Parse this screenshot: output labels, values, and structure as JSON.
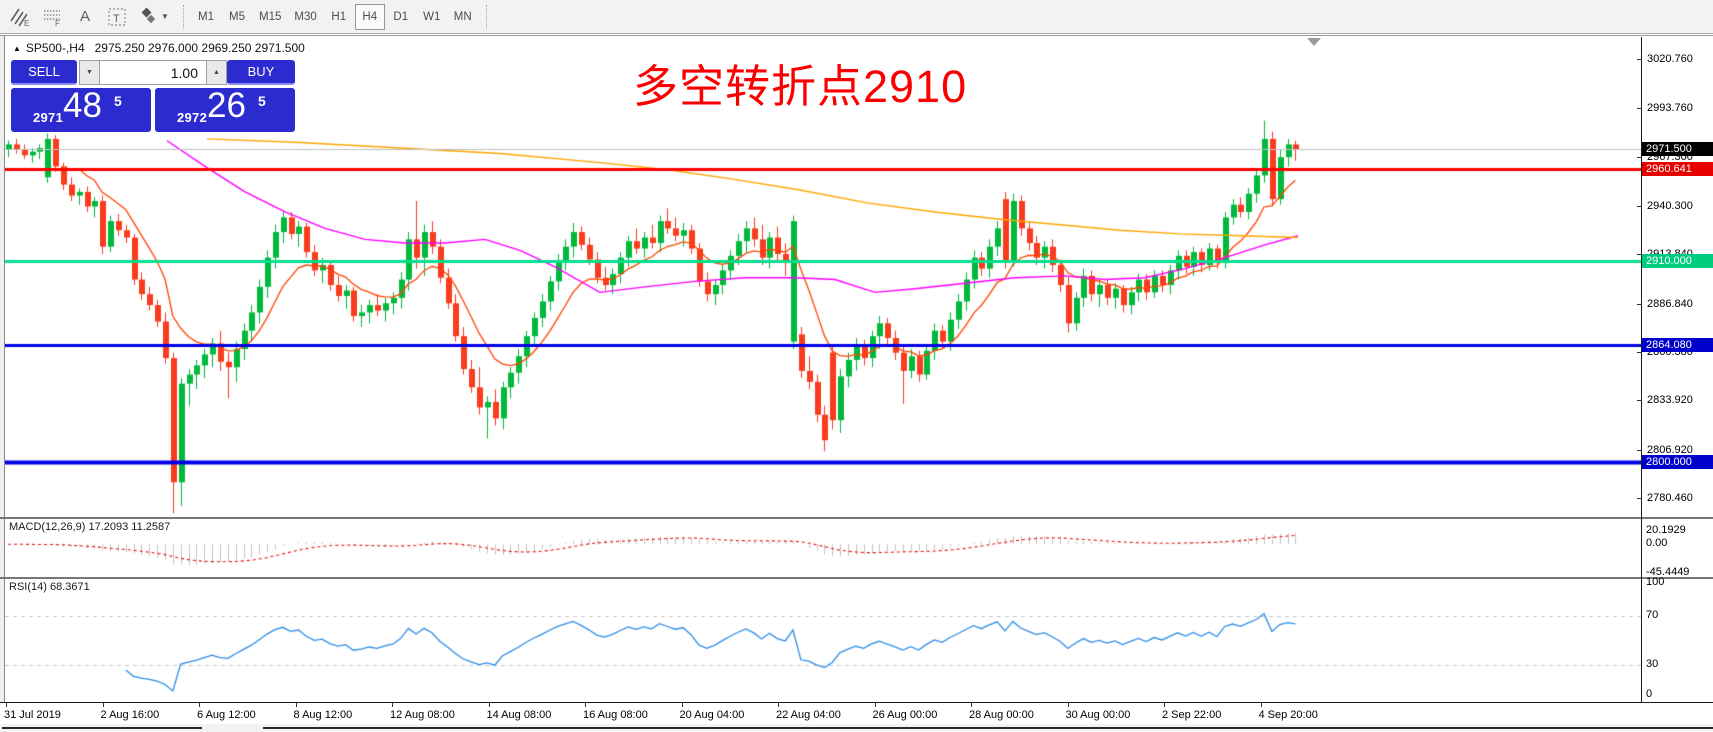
{
  "toolbar": {
    "icons": [
      {
        "name": "indicators-hatch-icon",
        "sub": "E"
      },
      {
        "name": "grid-pattern-icon",
        "sub": "F"
      },
      {
        "name": "text-label-icon",
        "glyph": "A"
      },
      {
        "name": "text-box-icon",
        "glyph": "T"
      },
      {
        "name": "arrange-objects-icon",
        "glyph": "❖"
      }
    ],
    "timeframes": [
      {
        "label": "M1",
        "active": false
      },
      {
        "label": "M5",
        "active": false
      },
      {
        "label": "M15",
        "active": false
      },
      {
        "label": "M30",
        "active": false
      },
      {
        "label": "H1",
        "active": false
      },
      {
        "label": "H4",
        "active": true
      },
      {
        "label": "D1",
        "active": false
      },
      {
        "label": "W1",
        "active": false
      },
      {
        "label": "MN",
        "active": false
      }
    ]
  },
  "header": {
    "collapse_arrow": "▲",
    "symbol": "SP500-,H4",
    "ohlc": "2975.250 2976.000 2969.250 2971.500"
  },
  "trade_panel": {
    "sell_label": "SELL",
    "buy_label": "BUY",
    "lot_value": "1.00",
    "spin_down": "▼",
    "spin_up": "▲",
    "sell_price_small": "2971",
    "sell_price_big": "48",
    "sell_price_sup": "5",
    "buy_price_small": "2972",
    "buy_price_big": "26",
    "buy_price_sup": "5"
  },
  "annotation": {
    "text": "多空转折点2910",
    "color": "#fb0000"
  },
  "chart_data": {
    "type": "candlestick",
    "symbol": "SP500-",
    "timeframe": "H4",
    "title_ohlc": "2975.250 2976.000 2969.250 2971.500",
    "current_price": 2971.5,
    "bull_color": "#00b93c",
    "bear_color": "#f93c1e",
    "axis": {
      "price_top": 3032.8,
      "price_bottom": 2770.0
    },
    "price_ticks": [
      {
        "label": "3020.760",
        "value": 3020.76
      },
      {
        "label": "2993.760",
        "value": 2993.76
      },
      {
        "label": "2967.300",
        "value": 2967.3
      },
      {
        "label": "2940.300",
        "value": 2940.3
      },
      {
        "label": "2913.840",
        "value": 2913.84
      },
      {
        "label": "2886.840",
        "value": 2886.84
      },
      {
        "label": "2860.380",
        "value": 2860.38
      },
      {
        "label": "2833.920",
        "value": 2833.92
      },
      {
        "label": "2806.920",
        "value": 2806.92
      },
      {
        "label": "2780.460",
        "value": 2780.46
      }
    ],
    "price_boxes": [
      {
        "label": "2971.500",
        "value": 2971.5,
        "bg": "#000000"
      },
      {
        "label": "2960.641",
        "value": 2960.641,
        "bg": "#e60000"
      },
      {
        "label": "2910.000",
        "value": 2910.0,
        "bg": "#00cc80"
      },
      {
        "label": "2864.080",
        "value": 2864.08,
        "bg": "#0000cc"
      },
      {
        "label": "2800.000",
        "value": 2800.0,
        "bg": "#0000cc"
      }
    ],
    "hlines": [
      {
        "value": 2960.641,
        "color": "#fe0000",
        "width": 3
      },
      {
        "value": 2910.0,
        "color": "#00de8e",
        "width": 3
      },
      {
        "value": 2864.08,
        "color": "#0000e6",
        "width": 3
      },
      {
        "value": 2800.0,
        "color": "#0000e6",
        "width": 4
      },
      {
        "value": 2971.5,
        "color": "#c0c0c0",
        "width": 1
      }
    ],
    "time_labels": [
      "31 Jul 2019",
      "2 Aug 16:00",
      "6 Aug 12:00",
      "8 Aug 12:00",
      "12 Aug 08:00",
      "14 Aug 08:00",
      "16 Aug 08:00",
      "20 Aug 04:00",
      "22 Aug 04:00",
      "26 Aug 00:00",
      "28 Aug 00:00",
      "30 Aug 00:00",
      "2 Sep 22:00",
      "4 Sep 20:00"
    ],
    "candles": [
      [
        2971,
        2976,
        2967,
        2974
      ],
      [
        2974,
        2977,
        2969,
        2971
      ],
      [
        2971,
        2974,
        2966,
        2968
      ],
      [
        2968,
        2972,
        2964,
        2970
      ],
      [
        2970,
        2974,
        2966,
        2972
      ],
      [
        2956,
        2980,
        2953,
        2977
      ],
      [
        2977,
        2979,
        2959,
        2962
      ],
      [
        2962,
        2964,
        2949,
        2952
      ],
      [
        2952,
        2956,
        2943,
        2946
      ],
      [
        2946,
        2950,
        2941,
        2948
      ],
      [
        2948,
        2951,
        2937,
        2940
      ],
      [
        2940,
        2945,
        2934,
        2943
      ],
      [
        2943,
        2946,
        2914,
        2918
      ],
      [
        2918,
        2935,
        2915,
        2932
      ],
      [
        2932,
        2936,
        2924,
        2927
      ],
      [
        2927,
        2930,
        2920,
        2923
      ],
      [
        2923,
        2925,
        2897,
        2900
      ],
      [
        2900,
        2904,
        2889,
        2892
      ],
      [
        2892,
        2896,
        2883,
        2886
      ],
      [
        2886,
        2889,
        2874,
        2877
      ],
      [
        2877,
        2882,
        2854,
        2857
      ],
      [
        2857,
        2860,
        2772,
        2789
      ],
      [
        2789,
        2846,
        2776,
        2843
      ],
      [
        2843,
        2851,
        2831,
        2848
      ],
      [
        2848,
        2856,
        2840,
        2853
      ],
      [
        2853,
        2862,
        2846,
        2859
      ],
      [
        2859,
        2868,
        2852,
        2865
      ],
      [
        2865,
        2872,
        2850,
        2855
      ],
      [
        2855,
        2860,
        2835,
        2852
      ],
      [
        2852,
        2866,
        2844,
        2862
      ],
      [
        2862,
        2876,
        2856,
        2872
      ],
      [
        2872,
        2886,
        2866,
        2882
      ],
      [
        2882,
        2900,
        2876,
        2896
      ],
      [
        2896,
        2916,
        2890,
        2912
      ],
      [
        2912,
        2930,
        2906,
        2926
      ],
      [
        2926,
        2938,
        2920,
        2934
      ],
      [
        2934,
        2937,
        2922,
        2925
      ],
      [
        2925,
        2932,
        2918,
        2929
      ],
      [
        2929,
        2931,
        2912,
        2915
      ],
      [
        2915,
        2919,
        2902,
        2905
      ],
      [
        2905,
        2912,
        2898,
        2908
      ],
      [
        2908,
        2910,
        2894,
        2897
      ],
      [
        2897,
        2902,
        2888,
        2891
      ],
      [
        2891,
        2897,
        2884,
        2894
      ],
      [
        2894,
        2896,
        2877,
        2880
      ],
      [
        2880,
        2886,
        2874,
        2882
      ],
      [
        2882,
        2889,
        2876,
        2886
      ],
      [
        2886,
        2892,
        2880,
        2883
      ],
      [
        2883,
        2890,
        2877,
        2887
      ],
      [
        2887,
        2893,
        2881,
        2890
      ],
      [
        2890,
        2904,
        2884,
        2900
      ],
      [
        2900,
        2926,
        2894,
        2922
      ],
      [
        2922,
        2943,
        2906,
        2912
      ],
      [
        2912,
        2930,
        2902,
        2926
      ],
      [
        2926,
        2932,
        2914,
        2918
      ],
      [
        2918,
        2922,
        2898,
        2901
      ],
      [
        2901,
        2906,
        2884,
        2887
      ],
      [
        2887,
        2892,
        2866,
        2869
      ],
      [
        2869,
        2874,
        2848,
        2851
      ],
      [
        2851,
        2856,
        2838,
        2841
      ],
      [
        2841,
        2852,
        2826,
        2830
      ],
      [
        2830,
        2836,
        2813,
        2833
      ],
      [
        2833,
        2840,
        2820,
        2824
      ],
      [
        2824,
        2844,
        2818,
        2841
      ],
      [
        2841,
        2852,
        2835,
        2849
      ],
      [
        2849,
        2862,
        2843,
        2858
      ],
      [
        2858,
        2872,
        2852,
        2869
      ],
      [
        2869,
        2882,
        2863,
        2879
      ],
      [
        2879,
        2892,
        2874,
        2888
      ],
      [
        2888,
        2902,
        2883,
        2899
      ],
      [
        2899,
        2914,
        2894,
        2910
      ],
      [
        2910,
        2922,
        2905,
        2918
      ],
      [
        2918,
        2931,
        2912,
        2926
      ],
      [
        2926,
        2929,
        2916,
        2919
      ],
      [
        2919,
        2923,
        2908,
        2911
      ],
      [
        2911,
        2915,
        2898,
        2901
      ],
      [
        2901,
        2907,
        2894,
        2897
      ],
      [
        2897,
        2906,
        2892,
        2903
      ],
      [
        2903,
        2915,
        2898,
        2912
      ],
      [
        2912,
        2924,
        2907,
        2921
      ],
      [
        2921,
        2928,
        2914,
        2917
      ],
      [
        2917,
        2926,
        2912,
        2923
      ],
      [
        2923,
        2930,
        2917,
        2920
      ],
      [
        2920,
        2935,
        2915,
        2932
      ],
      [
        2932,
        2939,
        2925,
        2928
      ],
      [
        2928,
        2934,
        2921,
        2924
      ],
      [
        2924,
        2931,
        2918,
        2927
      ],
      [
        2927,
        2930,
        2914,
        2917
      ],
      [
        2917,
        2920,
        2896,
        2899
      ],
      [
        2899,
        2904,
        2888,
        2892
      ],
      [
        2892,
        2900,
        2886,
        2897
      ],
      [
        2897,
        2908,
        2892,
        2905
      ],
      [
        2905,
        2916,
        2900,
        2913
      ],
      [
        2913,
        2925,
        2908,
        2921
      ],
      [
        2921,
        2932,
        2915,
        2928
      ],
      [
        2928,
        2934,
        2918,
        2922
      ],
      [
        2922,
        2930,
        2908,
        2912
      ],
      [
        2912,
        2926,
        2906,
        2923
      ],
      [
        2923,
        2929,
        2910,
        2914
      ],
      [
        2914,
        2920,
        2902,
        2910
      ],
      [
        2866,
        2935,
        2862,
        2932
      ],
      [
        2870,
        2874,
        2846,
        2850
      ],
      [
        2850,
        2858,
        2840,
        2844
      ],
      [
        2844,
        2848,
        2822,
        2826
      ],
      [
        2826,
        2831,
        2806,
        2812
      ],
      [
        2860,
        2864,
        2818,
        2823
      ],
      [
        2823,
        2851,
        2816,
        2847
      ],
      [
        2847,
        2860,
        2841,
        2856
      ],
      [
        2856,
        2868,
        2850,
        2864
      ],
      [
        2864,
        2867,
        2853,
        2857
      ],
      [
        2857,
        2872,
        2852,
        2869
      ],
      [
        2869,
        2880,
        2862,
        2876
      ],
      [
        2876,
        2879,
        2864,
        2868
      ],
      [
        2868,
        2872,
        2856,
        2860
      ],
      [
        2860,
        2864,
        2832,
        2850
      ],
      [
        2850,
        2862,
        2846,
        2858
      ],
      [
        2858,
        2861,
        2844,
        2848
      ],
      [
        2848,
        2864,
        2845,
        2861
      ],
      [
        2861,
        2876,
        2856,
        2872
      ],
      [
        2872,
        2875,
        2862,
        2866
      ],
      [
        2866,
        2882,
        2861,
        2878
      ],
      [
        2878,
        2892,
        2873,
        2888
      ],
      [
        2888,
        2904,
        2883,
        2900
      ],
      [
        2900,
        2916,
        2895,
        2912
      ],
      [
        2912,
        2915,
        2902,
        2906
      ],
      [
        2906,
        2922,
        2901,
        2918
      ],
      [
        2918,
        2932,
        2913,
        2928
      ],
      [
        2944,
        2948,
        2906,
        2910
      ],
      [
        2910,
        2947,
        2907,
        2943
      ],
      [
        2943,
        2946,
        2924,
        2928
      ],
      [
        2928,
        2932,
        2916,
        2920
      ],
      [
        2920,
        2924,
        2908,
        2912
      ],
      [
        2912,
        2921,
        2906,
        2918
      ],
      [
        2918,
        2922,
        2904,
        2908
      ],
      [
        2908,
        2911,
        2893,
        2897
      ],
      [
        2897,
        2902,
        2871,
        2876
      ],
      [
        2876,
        2893,
        2872,
        2890
      ],
      [
        2890,
        2906,
        2885,
        2902
      ],
      [
        2902,
        2905,
        2888,
        2892
      ],
      [
        2892,
        2900,
        2885,
        2897
      ],
      [
        2897,
        2900,
        2886,
        2890
      ],
      [
        2890,
        2898,
        2884,
        2895
      ],
      [
        2895,
        2897,
        2882,
        2886
      ],
      [
        2886,
        2896,
        2881,
        2893
      ],
      [
        2893,
        2903,
        2888,
        2900
      ],
      [
        2900,
        2903,
        2889,
        2893
      ],
      [
        2893,
        2905,
        2890,
        2902
      ],
      [
        2902,
        2905,
        2893,
        2897
      ],
      [
        2897,
        2908,
        2892,
        2905
      ],
      [
        2905,
        2916,
        2900,
        2913
      ],
      [
        2913,
        2916,
        2903,
        2907
      ],
      [
        2907,
        2918,
        2902,
        2915
      ],
      [
        2915,
        2917,
        2904,
        2908
      ],
      [
        2908,
        2920,
        2905,
        2917
      ],
      [
        2917,
        2919,
        2906,
        2909
      ],
      [
        2909,
        2937,
        2906,
        2934
      ],
      [
        2934,
        2944,
        2930,
        2941
      ],
      [
        2941,
        2945,
        2934,
        2937
      ],
      [
        2937,
        2950,
        2933,
        2947
      ],
      [
        2947,
        2960,
        2942,
        2957
      ],
      [
        2957,
        2987,
        2953,
        2977
      ],
      [
        2977,
        2981,
        2940,
        2944
      ],
      [
        2944,
        2971,
        2941,
        2967
      ],
      [
        2967,
        2977,
        2962,
        2974
      ],
      [
        2974,
        2976,
        2965,
        2971.5
      ]
    ],
    "ma_fast": {
      "type": "ema",
      "period": 10,
      "color": "#ff4500"
    },
    "ma_mid": {
      "color": "#ff00ff",
      "points": [
        [
          167,
          2976
        ],
        [
          205,
          2962
        ],
        [
          245,
          2948
        ],
        [
          285,
          2937
        ],
        [
          325,
          2928
        ],
        [
          365,
          2922
        ],
        [
          405,
          2920
        ],
        [
          445,
          2920
        ],
        [
          485,
          2922
        ],
        [
          520,
          2916
        ],
        [
          555,
          2907
        ],
        [
          600,
          2893
        ],
        [
          645,
          2896
        ],
        [
          695,
          2899
        ],
        [
          745,
          2901
        ],
        [
          795,
          2901
        ],
        [
          835,
          2900
        ],
        [
          875,
          2893
        ],
        [
          915,
          2895
        ],
        [
          965,
          2898
        ],
        [
          1015,
          2901
        ],
        [
          1065,
          2902
        ],
        [
          1105,
          2900
        ],
        [
          1145,
          2901
        ],
        [
          1185,
          2906
        ],
        [
          1225,
          2912
        ],
        [
          1265,
          2919
        ],
        [
          1298,
          2924
        ]
      ]
    },
    "ma_slow": {
      "color": "#ffa600",
      "points": [
        [
          207,
          2977
        ],
        [
          300,
          2975
        ],
        [
          400,
          2972
        ],
        [
          500,
          2969
        ],
        [
          600,
          2964
        ],
        [
          670,
          2960
        ],
        [
          733,
          2955
        ],
        [
          800,
          2949
        ],
        [
          867,
          2942
        ],
        [
          935,
          2937
        ],
        [
          1000,
          2933
        ],
        [
          1060,
          2930
        ],
        [
          1120,
          2927
        ],
        [
          1180,
          2925
        ],
        [
          1240,
          2924
        ],
        [
          1298,
          2923
        ]
      ]
    },
    "macd": {
      "label": "MACD(12,26,9) 17.2093 11.2587",
      "params": [
        12,
        26,
        9
      ],
      "current_main": 17.2093,
      "current_signal": 11.2587,
      "axis_labels": [
        "20.1929",
        "0.00",
        "-45.4449"
      ],
      "axis_values": [
        20.1929,
        0.0,
        -45.4449
      ],
      "scale_max": 40,
      "scale_min": -52,
      "hist_color": "#c4c4c4",
      "signal_color": "#e81212"
    },
    "rsi": {
      "label": "RSI(14) 68.3671",
      "period": 14,
      "current": 68.3671,
      "axis_labels": [
        "100",
        "70",
        "30",
        "0"
      ],
      "axis_values": [
        100,
        70,
        30,
        0
      ],
      "level_lines": [
        70,
        30
      ],
      "line_color": "#2f8ee8"
    }
  }
}
